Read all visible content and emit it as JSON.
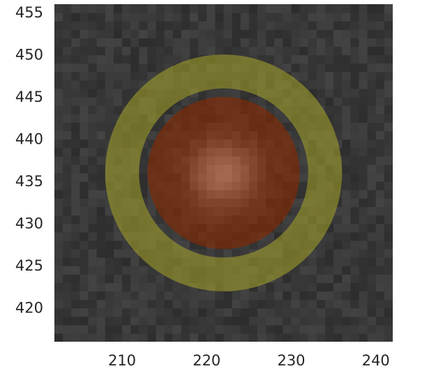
{
  "chart_data": {
    "type": "image",
    "title": "",
    "xlabel": "",
    "ylabel": "",
    "xlim": [
      202,
      242
    ],
    "ylim": [
      416,
      456
    ],
    "x_ticks": [
      210,
      220,
      230,
      240
    ],
    "y_ticks": [
      420,
      425,
      430,
      435,
      440,
      445,
      450,
      455
    ],
    "grid": false,
    "background_image": "grayscale pixel cutout with a bright central source",
    "source_center": [
      222,
      436
    ],
    "annuli": [
      {
        "inner_radius": 10,
        "outer_radius": 14,
        "color": "#a9a82a",
        "opacity": 0.55
      },
      {
        "inner_radius": 0,
        "outer_radius": 9,
        "color": "#8a2a00",
        "opacity": 0.6
      }
    ]
  }
}
